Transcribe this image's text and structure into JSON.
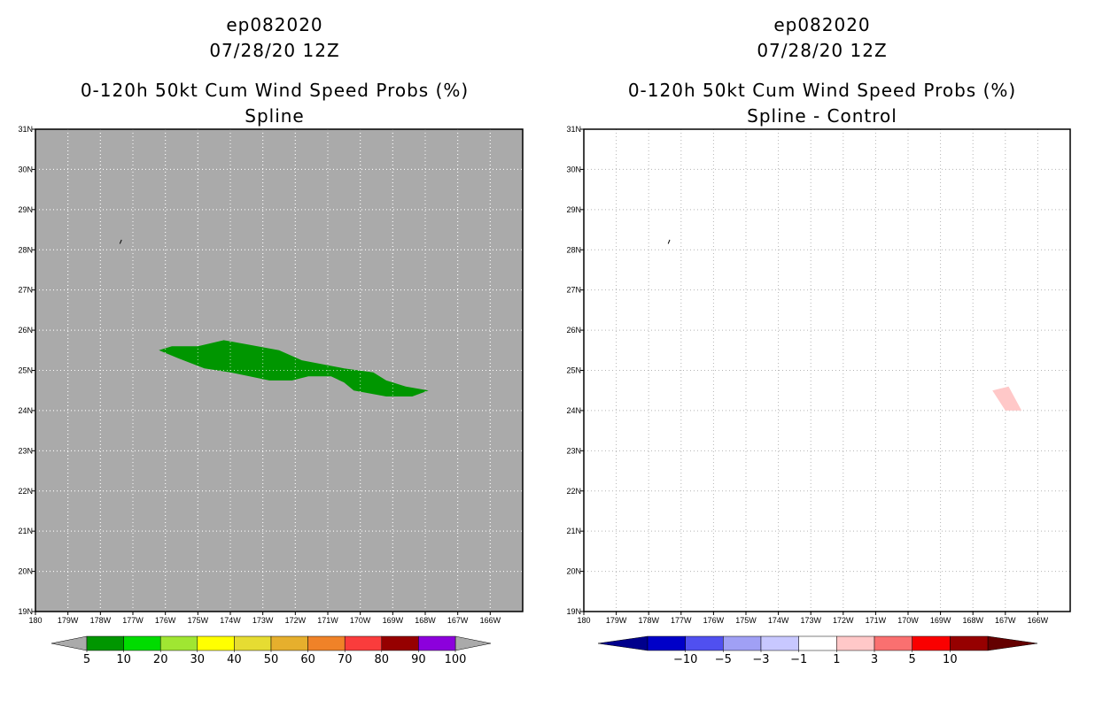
{
  "chart_data": [
    {
      "type": "heatmap",
      "storm_id": "ep082020",
      "datetime": "07/28/20 12Z",
      "title": "0-120h 50kt Cum Wind Speed Probs (%)",
      "subtitle": "Spline",
      "x_range_deg_west": [
        180,
        165
      ],
      "y_range_deg_north": [
        19,
        31
      ],
      "x_tick_labels": [
        "180",
        "179W",
        "178W",
        "177W",
        "176W",
        "175W",
        "174W",
        "173W",
        "172W",
        "171W",
        "170W",
        "169W",
        "168W",
        "167W",
        "166W"
      ],
      "y_tick_labels": [
        "19N",
        "20N",
        "21N",
        "22N",
        "23N",
        "24N",
        "25N",
        "26N",
        "27N",
        "28N",
        "29N",
        "30N",
        "31N"
      ],
      "background": "#aaaaaa",
      "regions": [
        {
          "value_range": "5-10",
          "color": "#009600",
          "polygon_lon_lat": [
            [
              176.2,
              25.5
            ],
            [
              175.8,
              25.6
            ],
            [
              175.0,
              25.6
            ],
            [
              174.2,
              25.75
            ],
            [
              173.5,
              25.65
            ],
            [
              172.5,
              25.5
            ],
            [
              171.8,
              25.25
            ],
            [
              170.5,
              25.05
            ],
            [
              169.6,
              24.95
            ],
            [
              169.2,
              24.75
            ],
            [
              168.6,
              24.6
            ],
            [
              167.9,
              24.5
            ],
            [
              168.4,
              24.35
            ],
            [
              169.2,
              24.35
            ],
            [
              170.2,
              24.5
            ],
            [
              170.5,
              24.7
            ],
            [
              170.9,
              24.85
            ],
            [
              171.6,
              24.85
            ],
            [
              172.1,
              24.75
            ],
            [
              172.8,
              24.75
            ],
            [
              174.0,
              24.95
            ],
            [
              174.8,
              25.05
            ],
            [
              175.6,
              25.3
            ],
            [
              176.2,
              25.5
            ]
          ]
        },
        {
          "value_range": "contour-fragment",
          "color": "#000000",
          "polygon_lon_lat": [
            [
              177.4,
              28.15
            ],
            [
              177.35,
              28.25
            ]
          ]
        }
      ],
      "colorbar": {
        "labels": [
          "5",
          "10",
          "20",
          "30",
          "40",
          "50",
          "60",
          "70",
          "80",
          "90",
          "100"
        ],
        "colors": [
          "#009600",
          "#00dc00",
          "#a0e632",
          "#ffff00",
          "#e6dc32",
          "#e6af2d",
          "#f08228",
          "#fa3c3c",
          "#960000",
          "#8c00dc"
        ],
        "end_color": "#aaaaaa"
      }
    },
    {
      "type": "heatmap",
      "storm_id": "ep082020",
      "datetime": "07/28/20 12Z",
      "title": "0-120h 50kt Cum Wind Speed Probs (%)",
      "subtitle": "Spline - Control",
      "x_range_deg_west": [
        180,
        165
      ],
      "y_range_deg_north": [
        19,
        31
      ],
      "x_tick_labels": [
        "180",
        "179W",
        "178W",
        "177W",
        "176W",
        "175W",
        "174W",
        "173W",
        "172W",
        "171W",
        "170W",
        "169W",
        "168W",
        "167W",
        "166W"
      ],
      "y_tick_labels": [
        "19N",
        "20N",
        "21N",
        "22N",
        "23N",
        "24N",
        "25N",
        "26N",
        "27N",
        "28N",
        "29N",
        "30N",
        "31N"
      ],
      "background": "#ffffff",
      "regions": [
        {
          "value_range": "1-3",
          "color": "#ffc8c8",
          "polygon_lon_lat": [
            [
              167.4,
              24.5
            ],
            [
              166.9,
              24.6
            ],
            [
              166.5,
              24.0
            ],
            [
              167.0,
              24.0
            ],
            [
              167.4,
              24.5
            ]
          ]
        },
        {
          "value_range": "contour-fragment",
          "color": "#000000",
          "polygon_lon_lat": [
            [
              177.4,
              28.15
            ],
            [
              177.35,
              28.25
            ]
          ]
        }
      ],
      "colorbar": {
        "labels": [
          "-10",
          "-5",
          "-3",
          "-1",
          "1",
          "3",
          "5",
          "10"
        ],
        "colors": [
          "#0000c8",
          "#5050f0",
          "#a0a0f5",
          "#c8c8ff",
          "#ffffff",
          "#ffc8c8",
          "#fa7070",
          "#fa0000",
          "#960000"
        ],
        "start_color": "#00008c",
        "end_color": "#640000"
      }
    }
  ]
}
